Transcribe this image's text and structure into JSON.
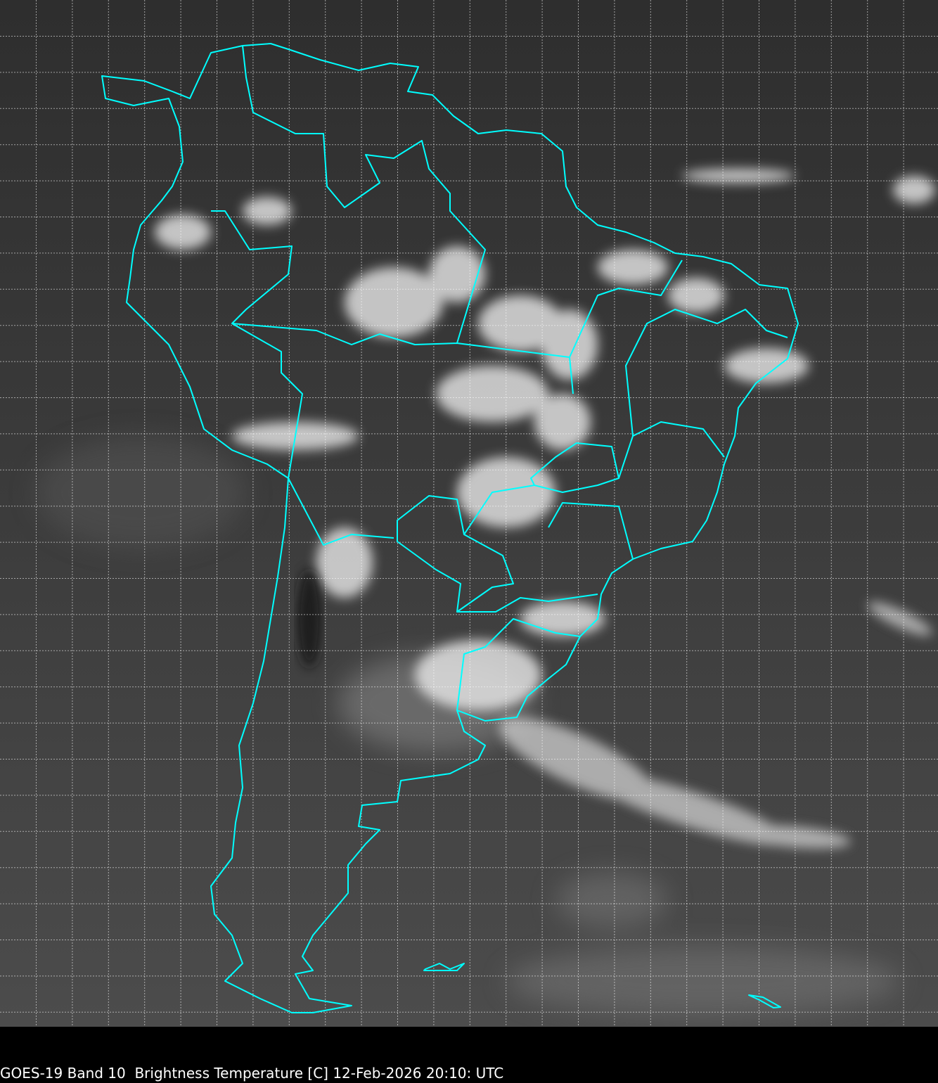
{
  "caption": "GOES-19 Band 10  Brightness Temperature [C] 12-Feb-2026 20:10: UTC",
  "colors": {
    "background_gray": "#3a3a3a",
    "coastline": "#00ffff",
    "gridline": "#ffffff",
    "cloud": "#f0f0f0",
    "caption_bar": "#000000"
  },
  "map": {
    "region": "South America",
    "grid": true,
    "grid_style": "dashed"
  }
}
